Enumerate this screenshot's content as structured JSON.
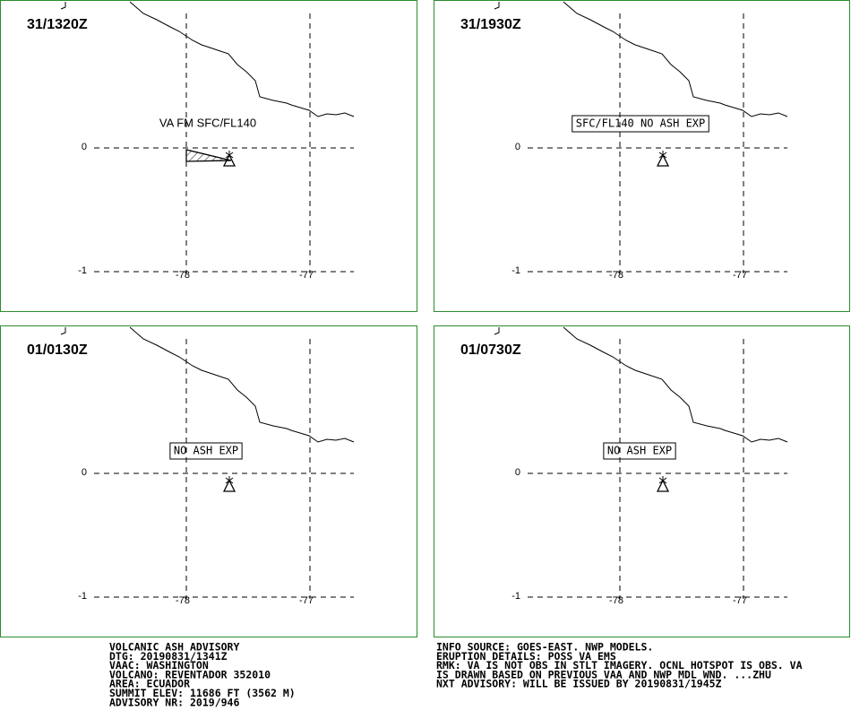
{
  "panels": [
    {
      "time": "31/1320Z",
      "annotation": "VA FM SFC/FL140"
    },
    {
      "time": "31/1930Z",
      "annotation": "SFC/FL140 NO ASH EXP"
    },
    {
      "time": "01/0130Z",
      "annotation": "NO ASH EXP"
    },
    {
      "time": "01/0730Z",
      "annotation": "NO ASH EXP"
    }
  ],
  "grid": {
    "lat": [
      0,
      -1
    ],
    "lon": [
      -78,
      -77
    ]
  },
  "footer": {
    "left": [
      "VOLCANIC ASH ADVISORY",
      "DTG: 20190831/1341Z",
      "VAAC: WASHINGTON",
      "VOLCANO: REVENTADOR 352010",
      "AREA: ECUADOR",
      "SUMMIT ELEV: 11686 FT (3562 M)",
      "ADVISORY NR: 2019/946"
    ],
    "right": [
      "INFO SOURCE: GOES-EAST. NWP MODELS.",
      "ERUPTION DETAILS: POSS VA EMS",
      "RMK: VA IS NOT OBS IN STLT IMAGERY. OCNL HOTSPOT IS OBS. VA",
      "IS DRAWN BASED ON PREVIOUS VAA AND NWP MDL WND. ...ZHU",
      "NXT ADVISORY: WILL BE ISSUED BY 20190831/1945Z"
    ]
  }
}
